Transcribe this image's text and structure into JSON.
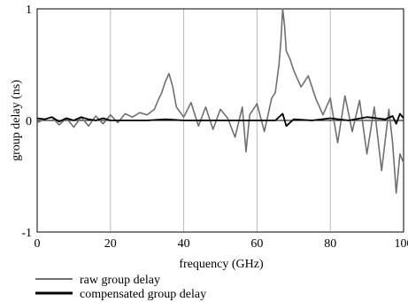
{
  "chart_data": {
    "type": "line",
    "xlabel": "frequency (GHz)",
    "ylabel": "group delay (ns)",
    "xlim": [
      0,
      100
    ],
    "ylim": [
      -1,
      1
    ],
    "x_ticks": [
      "0",
      "20",
      "40",
      "60",
      "80",
      "100"
    ],
    "y_ticks": [
      "1",
      "0",
      "-1"
    ],
    "grid": "vertical",
    "legend_position": "bottom-left",
    "series": [
      {
        "name": "raw group delay",
        "color": "#707070",
        "x": [
          0,
          2,
          4,
          6,
          8,
          10,
          12,
          14,
          16,
          18,
          20,
          22,
          24,
          26,
          28,
          30,
          32,
          33,
          34,
          35,
          36,
          37,
          38,
          40,
          42,
          44,
          46,
          48,
          50,
          52,
          54,
          56,
          57,
          58,
          60,
          62,
          64,
          65,
          66,
          66.5,
          67,
          67.5,
          68,
          69,
          70,
          72,
          74,
          76,
          78,
          80,
          82,
          84,
          86,
          88,
          90,
          92,
          94,
          96,
          97,
          98,
          99,
          100
        ],
        "values": [
          -0.02,
          0.01,
          0.03,
          -0.04,
          0.02,
          -0.06,
          0.03,
          -0.05,
          0.04,
          -0.03,
          0.05,
          -0.02,
          0.06,
          0.03,
          0.07,
          0.05,
          0.1,
          0.18,
          0.25,
          0.35,
          0.42,
          0.3,
          0.12,
          0.03,
          0.16,
          -0.05,
          0.12,
          -0.08,
          0.1,
          0.02,
          -0.15,
          0.12,
          -0.28,
          0.05,
          0.15,
          -0.1,
          0.2,
          0.25,
          0.5,
          0.7,
          1.0,
          0.85,
          0.62,
          0.55,
          0.45,
          0.3,
          0.4,
          0.2,
          0.05,
          0.2,
          -0.2,
          0.22,
          -0.1,
          0.18,
          -0.3,
          0.12,
          -0.45,
          0.1,
          -0.2,
          -0.65,
          -0.3,
          -0.38
        ]
      },
      {
        "name": "compensated group delay",
        "color": "#000000",
        "x": [
          0,
          2,
          4,
          6,
          8,
          10,
          12,
          14,
          16,
          18,
          20,
          25,
          30,
          35,
          40,
          45,
          50,
          55,
          60,
          63,
          65,
          66,
          67,
          68,
          70,
          75,
          80,
          85,
          90,
          95,
          97,
          98,
          99,
          100
        ],
        "values": [
          0.02,
          0.01,
          0.03,
          -0.01,
          0.02,
          0.0,
          0.03,
          0.01,
          0.0,
          0.02,
          0.0,
          0.0,
          0.0,
          0.01,
          0.0,
          0.0,
          0.0,
          0.0,
          0.0,
          0.0,
          0.0,
          0.03,
          0.06,
          -0.05,
          0.01,
          0.0,
          0.02,
          0.0,
          0.03,
          0.01,
          0.04,
          -0.03,
          0.06,
          0.02
        ]
      }
    ]
  }
}
